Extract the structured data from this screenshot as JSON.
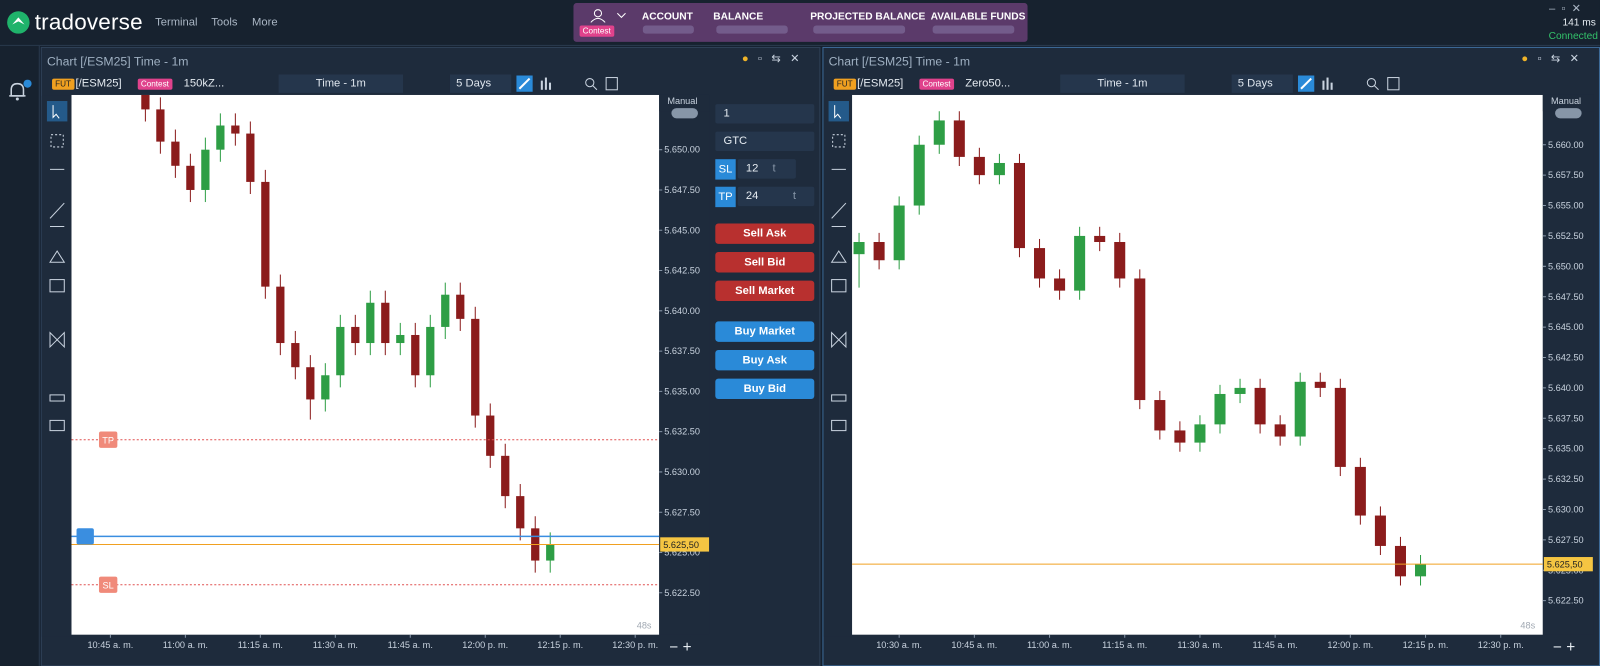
{
  "header": {
    "logo": "tradoverse",
    "menu": [
      "Terminal",
      "Tools",
      "More"
    ],
    "account_badge": "Contest",
    "account_fields": [
      "ACCOUNT",
      "BALANCE",
      "PROJECTED BALANCE",
      "AVAILABLE FUNDS"
    ],
    "latency": "141 ms",
    "status": "Connected"
  },
  "order_panel": {
    "quantity": "1",
    "tif": "GTC",
    "sl_label": "SL",
    "sl_value": "12",
    "sl_unit": "t",
    "tp_label": "TP",
    "tp_value": "24",
    "tp_unit": "t",
    "sell_buttons": [
      "Sell Ask",
      "Sell Bid",
      "Sell Market"
    ],
    "buy_buttons": [
      "Buy Market",
      "Buy Ask",
      "Buy Bid"
    ]
  },
  "chart_data": [
    {
      "type": "candlestick",
      "title": "Chart [/ESM25] Time - 1m",
      "toolbar": {
        "instrument_type": "FUT",
        "symbol": "[/ESM25]",
        "account_badge": "Contest",
        "account": "150kZ...",
        "interval": "Time - 1m",
        "range": "5 Days"
      },
      "mode": "Manual",
      "timer": "48s",
      "up_color": "#2e9e45",
      "down_color": "#8b1c1c",
      "xlim": [
        637.2,
        754.8
      ],
      "xticks": [
        {
          "value": 645,
          "label": "10:45 a. m."
        },
        {
          "value": 660,
          "label": "11:00 a. m."
        },
        {
          "value": 675,
          "label": "11:15 a. m."
        },
        {
          "value": 690,
          "label": "11:30 a. m."
        },
        {
          "value": 705,
          "label": "11:45 a. m."
        },
        {
          "value": 720,
          "label": "12:00 p. m."
        },
        {
          "value": 735,
          "label": "12:15 p. m."
        },
        {
          "value": 750,
          "label": "12:30 p. m."
        }
      ],
      "ylim": [
        5619.9,
        5653.4
      ],
      "yticks": [
        {
          "value": 5650,
          "label": "5.650.00"
        },
        {
          "value": 5647.5,
          "label": "5.647.50"
        },
        {
          "value": 5645,
          "label": "5.645.00"
        },
        {
          "value": 5642.5,
          "label": "5.642.50"
        },
        {
          "value": 5640,
          "label": "5.640.00"
        },
        {
          "value": 5637.5,
          "label": "5.637.50"
        },
        {
          "value": 5635,
          "label": "5.635.00"
        },
        {
          "value": 5632.5,
          "label": "5.632.50"
        },
        {
          "value": 5630,
          "label": "5.630.00"
        },
        {
          "value": 5627.5,
          "label": "5.627.50"
        },
        {
          "value": 5625,
          "label": "5.625.00"
        },
        {
          "value": 5622.5,
          "label": "5.622.50"
        }
      ],
      "x": [
        652,
        655,
        658,
        661,
        664,
        667,
        670,
        673,
        676,
        679,
        682,
        685,
        688,
        691,
        694,
        697,
        700,
        703,
        706,
        709,
        712,
        715,
        718,
        721,
        724,
        727,
        730,
        733
      ],
      "candles": [
        [
          5653.5,
          5654.25,
          5651.75,
          5652.5
        ],
        [
          5652.5,
          5653.25,
          5649.75,
          5650.5
        ],
        [
          5650.5,
          5651.25,
          5648.25,
          5649
        ],
        [
          5649,
          5649.75,
          5646.75,
          5647.5
        ],
        [
          5647.5,
          5650.75,
          5646.75,
          5650
        ],
        [
          5650,
          5652.25,
          5649.25,
          5651.5
        ],
        [
          5651.5,
          5652.25,
          5650.25,
          5651
        ],
        [
          5651,
          5651.75,
          5647.25,
          5648
        ],
        [
          5648,
          5648.75,
          5640.75,
          5641.5
        ],
        [
          5641.5,
          5642.25,
          5637.25,
          5638
        ],
        [
          5638,
          5638.75,
          5635.75,
          5636.5
        ],
        [
          5636.5,
          5637.25,
          5633.25,
          5634.5
        ],
        [
          5634.5,
          5636.75,
          5633.75,
          5636
        ],
        [
          5636,
          5639.75,
          5635.25,
          5639
        ],
        [
          5639,
          5639.75,
          5637.25,
          5638
        ],
        [
          5638,
          5641.25,
          5637.25,
          5640.5
        ],
        [
          5640.5,
          5641.25,
          5637.25,
          5638
        ],
        [
          5638,
          5639.25,
          5637.25,
          5638.5
        ],
        [
          5638.5,
          5639.25,
          5635.25,
          5636
        ],
        [
          5636,
          5639.75,
          5635.25,
          5639
        ],
        [
          5639,
          5641.75,
          5638.25,
          5641
        ],
        [
          5641,
          5641.75,
          5638.75,
          5639.5
        ],
        [
          5639.5,
          5640.25,
          5632.75,
          5633.5
        ],
        [
          5633.5,
          5634.25,
          5630.25,
          5631
        ],
        [
          5631,
          5631.75,
          5627.75,
          5628.5
        ],
        [
          5628.5,
          5629.25,
          5625.75,
          5626.5
        ],
        [
          5626.5,
          5627.25,
          5623.75,
          5624.5
        ],
        [
          5624.5,
          5626.25,
          5623.75,
          5625.5
        ]
      ],
      "last_price": {
        "value": 5625.5,
        "label": "5.625,50"
      },
      "position_price": 5626,
      "tp": {
        "label": "TP",
        "value": 5632
      },
      "sl": {
        "label": "SL",
        "value": 5623
      }
    },
    {
      "type": "candlestick",
      "title": "Chart [/ESM25] Time - 1m",
      "toolbar": {
        "instrument_type": "FUT",
        "symbol": "[/ESM25]",
        "account_badge": "Contest",
        "account": "Zero50...",
        "interval": "Time - 1m",
        "range": "5 Days"
      },
      "mode": "Manual",
      "timer": "48s",
      "up_color": "#2e9e45",
      "down_color": "#8b1c1c",
      "xlim": [
        620.6,
        758.4
      ],
      "xticks": [
        {
          "value": 630,
          "label": "10:30 a. m."
        },
        {
          "value": 645,
          "label": "10:45 a. m."
        },
        {
          "value": 660,
          "label": "11:00 a. m."
        },
        {
          "value": 675,
          "label": "11:15 a. m."
        },
        {
          "value": 690,
          "label": "11:30 a. m."
        },
        {
          "value": 705,
          "label": "11:45 a. m."
        },
        {
          "value": 720,
          "label": "12:00 p. m."
        },
        {
          "value": 735,
          "label": "12:15 p. m."
        },
        {
          "value": 750,
          "label": "12:30 p. m."
        }
      ],
      "ylim": [
        5619.7,
        5664.1
      ],
      "yticks": [
        {
          "value": 5660,
          "label": "5.660.00"
        },
        {
          "value": 5657.5,
          "label": "5.657.50"
        },
        {
          "value": 5655,
          "label": "5.655.00"
        },
        {
          "value": 5652.5,
          "label": "5.652.50"
        },
        {
          "value": 5650,
          "label": "5.650.00"
        },
        {
          "value": 5647.5,
          "label": "5.647.50"
        },
        {
          "value": 5645,
          "label": "5.645.00"
        },
        {
          "value": 5642.5,
          "label": "5.642.50"
        },
        {
          "value": 5640,
          "label": "5.640.00"
        },
        {
          "value": 5637.5,
          "label": "5.637.50"
        },
        {
          "value": 5635,
          "label": "5.635.00"
        },
        {
          "value": 5632.5,
          "label": "5.632.50"
        },
        {
          "value": 5630,
          "label": "5.630.00"
        },
        {
          "value": 5627.5,
          "label": "5.627.50"
        },
        {
          "value": 5625,
          "label": "5.625.00"
        },
        {
          "value": 5622.5,
          "label": "5.622.50"
        }
      ],
      "x": [
        622,
        626,
        630,
        634,
        638,
        642,
        646,
        650,
        654,
        658,
        662,
        666,
        670,
        674,
        678,
        682,
        686,
        690,
        694,
        698,
        702,
        706,
        710,
        714,
        718,
        722,
        726,
        730,
        734
      ],
      "candles": [
        [
          5651,
          5652.75,
          5648.25,
          5652
        ],
        [
          5652,
          5652.75,
          5649.75,
          5650.5
        ],
        [
          5650.5,
          5655.75,
          5649.75,
          5655
        ],
        [
          5655,
          5660.75,
          5654.25,
          5660
        ],
        [
          5660,
          5662.75,
          5659.25,
          5662
        ],
        [
          5662,
          5662.75,
          5658.25,
          5659
        ],
        [
          5659,
          5659.75,
          5656.75,
          5657.5
        ],
        [
          5657.5,
          5659.25,
          5656.75,
          5658.5
        ],
        [
          5658.5,
          5659.25,
          5650.75,
          5651.5
        ],
        [
          5651.5,
          5652.25,
          5648.25,
          5649
        ],
        [
          5649,
          5649.75,
          5647.25,
          5648
        ],
        [
          5648,
          5653.25,
          5647.25,
          5652.5
        ],
        [
          5652.5,
          5653.25,
          5651.25,
          5652
        ],
        [
          5652,
          5652.75,
          5648.25,
          5649
        ],
        [
          5649,
          5649.75,
          5638.25,
          5639
        ],
        [
          5639,
          5639.75,
          5635.75,
          5636.5
        ],
        [
          5636.5,
          5637.25,
          5634.75,
          5635.5
        ],
        [
          5635.5,
          5637.75,
          5634.75,
          5637
        ],
        [
          5637,
          5640.25,
          5636.25,
          5639.5
        ],
        [
          5639.5,
          5640.75,
          5638.75,
          5640
        ],
        [
          5640,
          5640.75,
          5636.25,
          5637
        ],
        [
          5637,
          5637.75,
          5635.25,
          5636
        ],
        [
          5636,
          5641.25,
          5635.25,
          5640.5
        ],
        [
          5640.5,
          5641.25,
          5639.25,
          5640
        ],
        [
          5640,
          5640.75,
          5632.75,
          5633.5
        ],
        [
          5633.5,
          5634.25,
          5628.75,
          5629.5
        ],
        [
          5629.5,
          5630.25,
          5626.25,
          5627
        ],
        [
          5627,
          5627.75,
          5623.75,
          5624.5
        ],
        [
          5624.5,
          5626.25,
          5623.75,
          5625.5
        ]
      ],
      "last_price": {
        "value": 5625.5,
        "label": "5.625,50"
      }
    }
  ]
}
